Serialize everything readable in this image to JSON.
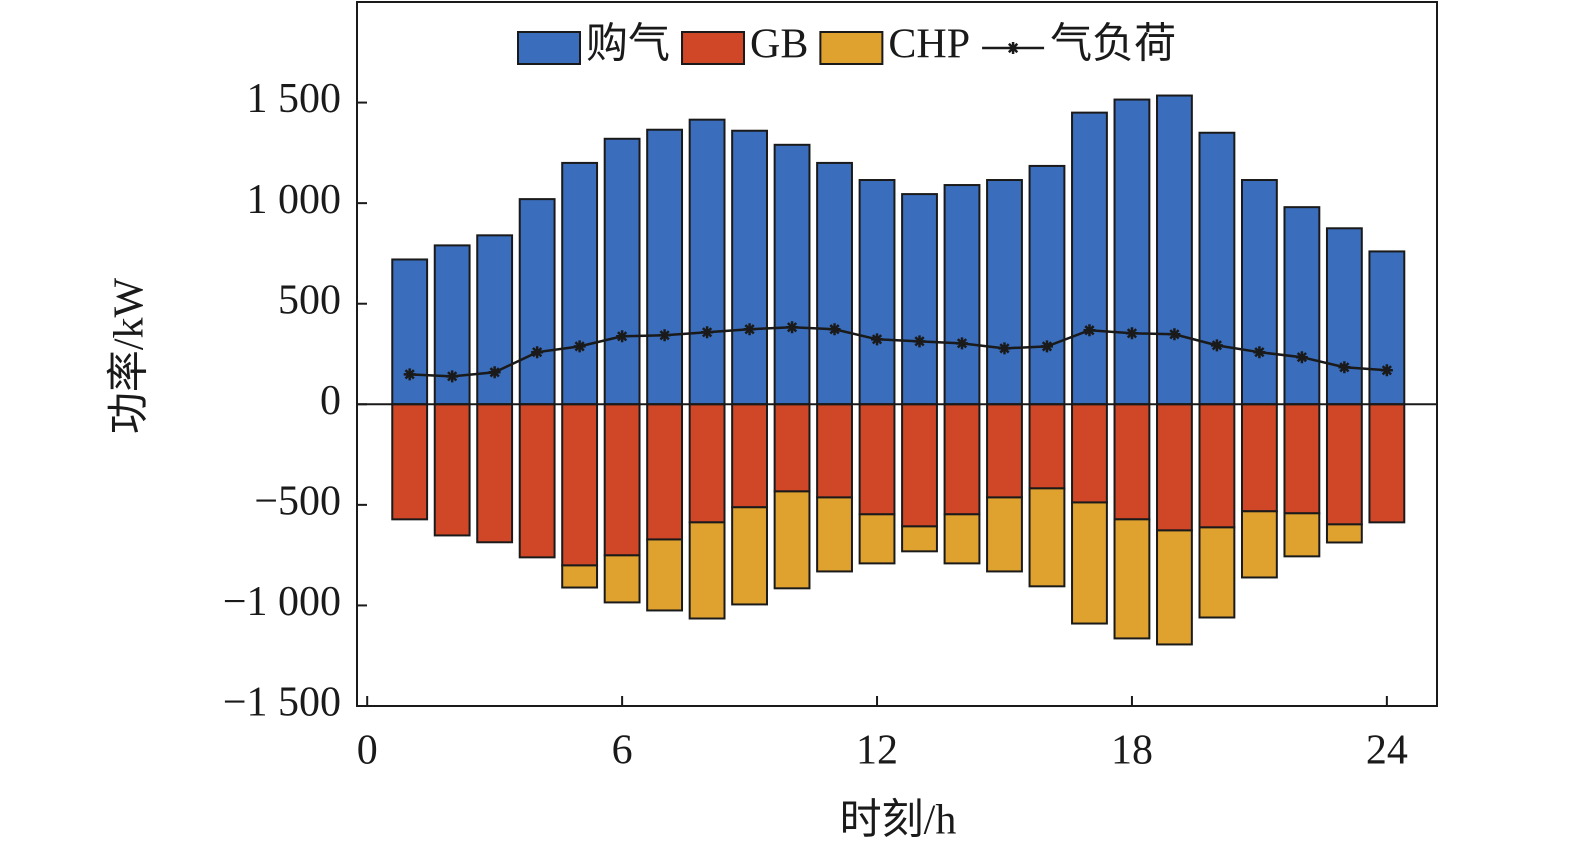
{
  "chart_data": {
    "type": "bar",
    "x_label": "时刻/h",
    "y_label": "功率/kW",
    "x": [
      1,
      2,
      3,
      4,
      5,
      6,
      7,
      8,
      9,
      10,
      11,
      12,
      13,
      14,
      15,
      16,
      17,
      18,
      19,
      20,
      21,
      22,
      23,
      24
    ],
    "series": [
      {
        "name": "购气",
        "color": "#3a6dbb",
        "values": [
          720,
          790,
          840,
          1020,
          1200,
          1320,
          1365,
          1415,
          1360,
          1290,
          1200,
          1115,
          1045,
          1090,
          1115,
          1185,
          1450,
          1515,
          1535,
          1350,
          1115,
          980,
          875,
          760
        ]
      },
      {
        "name": "GB",
        "color": "#cf4727",
        "values": [
          -572,
          -652,
          -686,
          -761,
          -801,
          -751,
          -672,
          -587,
          -512,
          -433,
          -463,
          -547,
          -607,
          -547,
          -463,
          -418,
          -488,
          -572,
          -627,
          -612,
          -532,
          -542,
          -597,
          -587
        ]
      },
      {
        "name": "CHP",
        "color": "#e0a22f",
        "values": [
          0,
          0,
          0,
          0,
          -110,
          -234,
          -353,
          -478,
          -483,
          -482,
          -368,
          -244,
          -124,
          -244,
          -368,
          -487,
          -602,
          -592,
          -567,
          -448,
          -329,
          -214,
          -90,
          0
        ]
      },
      {
        "name": "气负荷",
        "color": "#1a1a1a",
        "type": "line",
        "values": [
          149,
          139,
          159,
          259,
          288,
          338,
          343,
          358,
          373,
          383,
          373,
          323,
          313,
          303,
          278,
          288,
          368,
          353,
          348,
          293,
          259,
          234,
          184,
          169
        ]
      }
    ],
    "xlim": [
      -0.24,
      25.18
    ],
    "xticks": [
      0,
      6,
      12,
      18,
      24
    ],
    "ylim": [
      -1500,
      2000
    ],
    "yticks": [
      {
        "value": -1500,
        "label": "−1 500"
      },
      {
        "value": -1000,
        "label": "−1 000"
      },
      {
        "value": -500,
        "label": "−500"
      },
      0,
      500,
      {
        "value": 1000,
        "label": "1 000"
      },
      {
        "value": 1500,
        "label": "1 500"
      }
    ],
    "legend": "top"
  }
}
